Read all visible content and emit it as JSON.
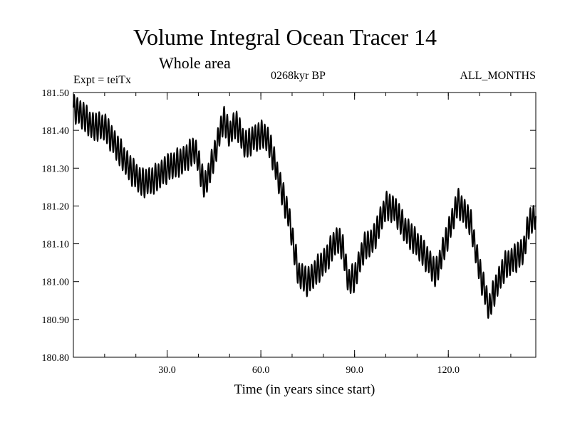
{
  "header": {
    "title": "Volume Integral Ocean Tracer 14",
    "subtitle": "Whole area",
    "expt": "Expt = teiTx",
    "period": "0268kyr BP",
    "months": "ALL_MONTHS"
  },
  "chart_data": {
    "type": "line",
    "title": "Volume Integral Ocean Tracer 14",
    "subtitle": "Whole area",
    "xlabel": "Time (in years since start)",
    "ylabel": "",
    "xlim": [
      0,
      148
    ],
    "ylim": [
      180.8,
      181.5
    ],
    "xticks": [
      30,
      60,
      90,
      120
    ],
    "xtick_labels": [
      "30.0",
      "60.0",
      "90.0",
      "120.0"
    ],
    "xminor_step": 10,
    "yticks": [
      180.8,
      180.9,
      181.0,
      181.1,
      181.2,
      181.3,
      181.4,
      181.5
    ],
    "ytick_labels": [
      "180.80",
      "180.90",
      "181.00",
      "181.10",
      "181.20",
      "181.30",
      "181.40",
      "181.50"
    ],
    "grid": false,
    "series": [
      {
        "name": "",
        "color": "#000000",
        "seasonal_amplitude": 0.035,
        "x": [
          0,
          3,
          6,
          10,
          15,
          18,
          22,
          26,
          30,
          35,
          39,
          42,
          45,
          48,
          50,
          52,
          55,
          58,
          61,
          63,
          66,
          69,
          72,
          75,
          78,
          81,
          84,
          86,
          88,
          90,
          93,
          96,
          100,
          103,
          106,
          110,
          114,
          116,
          119,
          123,
          127,
          130,
          133,
          135,
          138,
          141,
          144,
          146,
          148
        ],
        "values": [
          181.46,
          181.44,
          181.41,
          181.41,
          181.34,
          181.3,
          181.26,
          181.27,
          181.3,
          181.32,
          181.35,
          181.25,
          181.33,
          181.43,
          181.39,
          181.42,
          181.36,
          181.38,
          181.39,
          181.36,
          181.26,
          181.17,
          181.02,
          181.0,
          181.03,
          181.06,
          181.11,
          181.1,
          181.0,
          181.01,
          181.09,
          181.11,
          181.2,
          181.19,
          181.14,
          181.1,
          181.05,
          181.02,
          181.1,
          181.21,
          181.16,
          181.03,
          180.93,
          180.98,
          181.04,
          181.06,
          181.08,
          181.16,
          181.17
        ]
      }
    ]
  }
}
